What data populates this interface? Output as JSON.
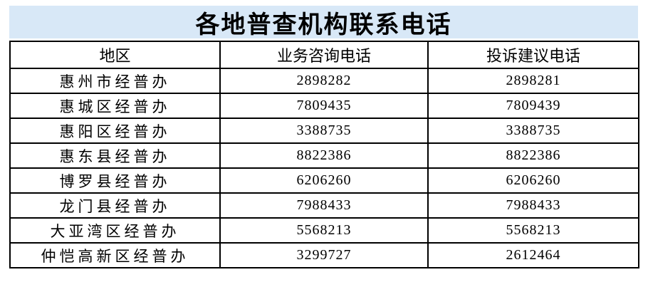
{
  "title": "各地普查机构联系电话",
  "colors": {
    "title_background": "#d8e8f7",
    "table_border": "#000000",
    "text": "#000000"
  },
  "table": {
    "columns": [
      "地区",
      "业务咨询电话",
      "投诉建议电话"
    ],
    "rows": [
      {
        "region": "惠州市经普办",
        "business_phone": "2898282",
        "complaint_phone": "2898281"
      },
      {
        "region": "惠城区经普办",
        "business_phone": "7809435",
        "complaint_phone": "7809439"
      },
      {
        "region": "惠阳区经普办",
        "business_phone": "3388735",
        "complaint_phone": "3388735"
      },
      {
        "region": "惠东县经普办",
        "business_phone": "8822386",
        "complaint_phone": "8822386"
      },
      {
        "region": "博罗县经普办",
        "business_phone": "6206260",
        "complaint_phone": "6206260"
      },
      {
        "region": "龙门县经普办",
        "business_phone": "7988433",
        "complaint_phone": "7988433"
      },
      {
        "region": "大亚湾区经普办",
        "business_phone": "5568213",
        "complaint_phone": "5568213"
      },
      {
        "region": "仲恺高新区经普办",
        "business_phone": "3299727",
        "complaint_phone": "2612464"
      }
    ]
  }
}
